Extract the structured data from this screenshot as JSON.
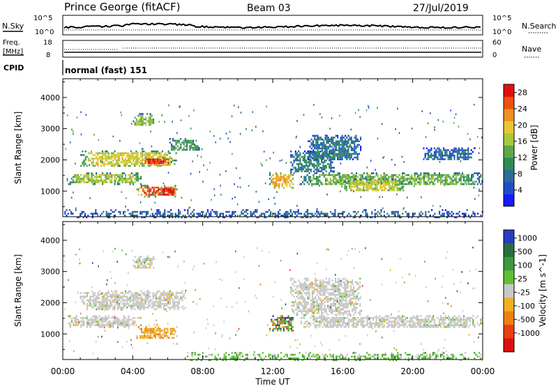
{
  "header": {
    "station": "Prince George (fitACF)",
    "beam": "Beam 03",
    "date": "27/Jul/2019"
  },
  "summary": {
    "nsky_label": "N.Sky",
    "nsky_ticks": [
      "10^5",
      "10^0"
    ],
    "nsearch_label": "N.Search",
    "freq_label": "Freq.",
    "freq_unit": "[MHz]",
    "freq_ticks": [
      "18",
      "8"
    ],
    "nave_label": "Nave",
    "nave_ticks": [
      "60",
      "0"
    ],
    "cpid_label": "CPID",
    "cpid_value": "normal (fast) 151"
  },
  "chart_data": [
    {
      "type": "heatmap",
      "name": "power",
      "xlabel": "Time UT",
      "ylabel": "Slant Range [km]",
      "xlim": [
        0,
        24
      ],
      "ylim": [
        180,
        4600
      ],
      "x_ticks": [
        "00:00",
        "04:00",
        "08:00",
        "12:00",
        "16:00",
        "20:00",
        "00:00"
      ],
      "y_ticks": [
        "1000",
        "2000",
        "3000",
        "4000"
      ],
      "colorbar": {
        "label": "Power [dB]",
        "range": [
          0,
          30
        ],
        "ticks": [
          "4",
          "8",
          "12",
          "16",
          "20",
          "24",
          "28"
        ],
        "colors": [
          "#1a1aff",
          "#1f4fc8",
          "#2a6e98",
          "#2e8b57",
          "#5fa84a",
          "#a8c83a",
          "#e8c830",
          "#f09020",
          "#ee5010",
          "#e01010"
        ]
      },
      "regions": [
        {
          "t": [
            0.3,
            4.5
          ],
          "r": [
            1250,
            1600
          ],
          "p": 14
        },
        {
          "t": [
            1.0,
            6.5
          ],
          "r": [
            1800,
            2300
          ],
          "p": 16
        },
        {
          "t": [
            4.5,
            6.2
          ],
          "r": [
            1850,
            2100
          ],
          "p": 24
        },
        {
          "t": [
            4.2,
            6.5
          ],
          "r": [
            850,
            1200
          ],
          "p": 22
        },
        {
          "t": [
            5.6,
            6.4
          ],
          "r": [
            880,
            1150
          ],
          "p": 28
        },
        {
          "t": [
            4.0,
            5.2
          ],
          "r": [
            3100,
            3500
          ],
          "p": 13
        },
        {
          "t": [
            6.0,
            7.8
          ],
          "r": [
            2300,
            2700
          ],
          "p": 10
        },
        {
          "t": [
            11.8,
            13.2
          ],
          "r": [
            1100,
            1600
          ],
          "p": 18
        },
        {
          "t": [
            13.5,
            24.0
          ],
          "r": [
            1200,
            1600
          ],
          "p": 12
        },
        {
          "t": [
            16.0,
            19.5
          ],
          "r": [
            1000,
            1400
          ],
          "p": 15
        },
        {
          "t": [
            13.0,
            15.5
          ],
          "r": [
            1600,
            2300
          ],
          "p": 8
        },
        {
          "t": [
            14.0,
            17.0
          ],
          "r": [
            2000,
            2800
          ],
          "p": 7
        },
        {
          "t": [
            20.5,
            23.5
          ],
          "r": [
            2000,
            2400
          ],
          "p": 6
        },
        {
          "t": [
            0.0,
            24.0
          ],
          "r": [
            180,
            420
          ],
          "p": 6
        }
      ]
    },
    {
      "type": "heatmap",
      "name": "velocity",
      "xlabel": "Time UT",
      "ylabel": "Slant Range [km]",
      "xlim": [
        0,
        24
      ],
      "ylim": [
        180,
        4600
      ],
      "x_ticks": [
        "00:00",
        "04:00",
        "08:00",
        "12:00",
        "16:00",
        "20:00",
        "00:00"
      ],
      "y_ticks": [
        "1000",
        "2000",
        "3000",
        "4000"
      ],
      "colorbar": {
        "label": "Velocity [m s^-1]",
        "ticks": [
          "1000",
          "500",
          "100",
          "25",
          "-25",
          "-100",
          "-500",
          "-1000"
        ],
        "colors": [
          "#2a3cc0",
          "#2a6e40",
          "#3c9a3c",
          "#60c030",
          "#c8c8c8",
          "#f0b020",
          "#f08010",
          "#e84010",
          "#e01010"
        ]
      },
      "regions": [
        {
          "t": [
            0.3,
            4.5
          ],
          "r": [
            1250,
            1600
          ],
          "v": "ground"
        },
        {
          "t": [
            1.0,
            7.0
          ],
          "r": [
            1800,
            2400
          ],
          "v": "ground"
        },
        {
          "t": [
            4.2,
            6.5
          ],
          "r": [
            850,
            1250
          ],
          "v": "neg"
        },
        {
          "t": [
            4.0,
            5.2
          ],
          "r": [
            3100,
            3500
          ],
          "v": "ground"
        },
        {
          "t": [
            11.8,
            13.2
          ],
          "r": [
            1100,
            1600
          ],
          "v": "mixed"
        },
        {
          "t": [
            13.5,
            24.0
          ],
          "r": [
            1200,
            1600
          ],
          "v": "ground"
        },
        {
          "t": [
            13.0,
            17.0
          ],
          "r": [
            1600,
            2800
          ],
          "v": "ground"
        },
        {
          "t": [
            7.0,
            24.0
          ],
          "r": [
            180,
            420
          ],
          "v": "pos"
        }
      ]
    }
  ]
}
